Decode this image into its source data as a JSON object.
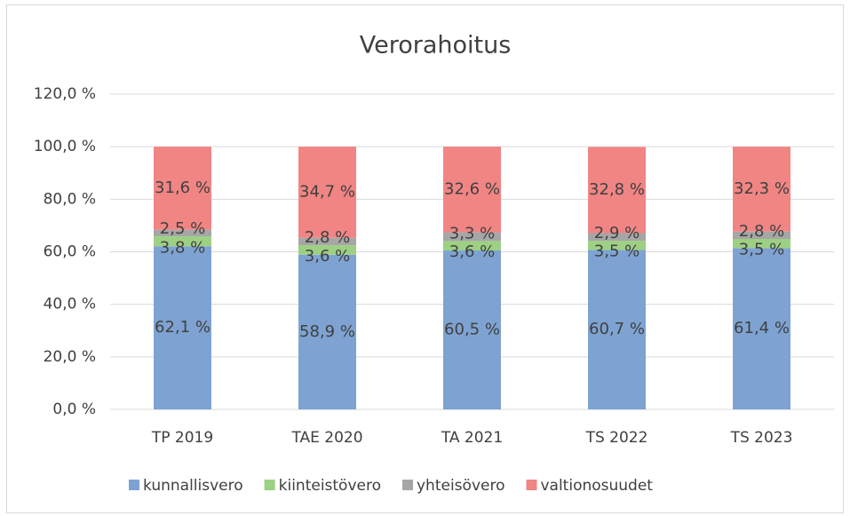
{
  "chart_data": {
    "type": "stacked_bar",
    "title": "Verorahoitus",
    "categories": [
      "TP 2019",
      "TAE 2020",
      "TA 2021",
      "TS 2022",
      "TS 2023"
    ],
    "series": [
      {
        "name": "kunnallisvero",
        "color": "#7ea3d2",
        "values": [
          62.1,
          58.9,
          60.5,
          60.7,
          61.4
        ],
        "value_labels": [
          "62,1 %",
          "58,9 %",
          "60,5 %",
          "60,7 %",
          "61,4 %"
        ]
      },
      {
        "name": "kiinteistövero",
        "color": "#9dd083",
        "values": [
          3.8,
          3.6,
          3.6,
          3.5,
          3.5
        ],
        "value_labels": [
          "3,8 %",
          "3,6 %",
          "3,6 %",
          "3,5 %",
          "3,5 %"
        ]
      },
      {
        "name": "yhteisövero",
        "color": "#a6a6a6",
        "values": [
          2.5,
          2.8,
          3.3,
          2.9,
          2.8
        ],
        "value_labels": [
          "2,5 %",
          "2,8 %",
          "3,3 %",
          "2,9 %",
          "2,8 %"
        ]
      },
      {
        "name": "valtionosuudet",
        "color": "#f08584",
        "values": [
          31.6,
          34.7,
          32.6,
          32.8,
          32.3
        ],
        "value_labels": [
          "31,6 %",
          "34,7 %",
          "32,6 %",
          "32,8 %",
          "32,3 %"
        ]
      }
    ],
    "ylim": [
      0,
      120
    ],
    "yticks": [
      {
        "value": 0,
        "label": "0,0 %"
      },
      {
        "value": 20,
        "label": "20,0 %"
      },
      {
        "value": 40,
        "label": "40,0 %"
      },
      {
        "value": 60,
        "label": "60,0 %"
      },
      {
        "value": 80,
        "label": "80,0 %"
      },
      {
        "value": 100,
        "label": "100,0 %"
      },
      {
        "value": 120,
        "label": "120,0 %"
      }
    ],
    "grid": true,
    "legend": "bottom"
  }
}
